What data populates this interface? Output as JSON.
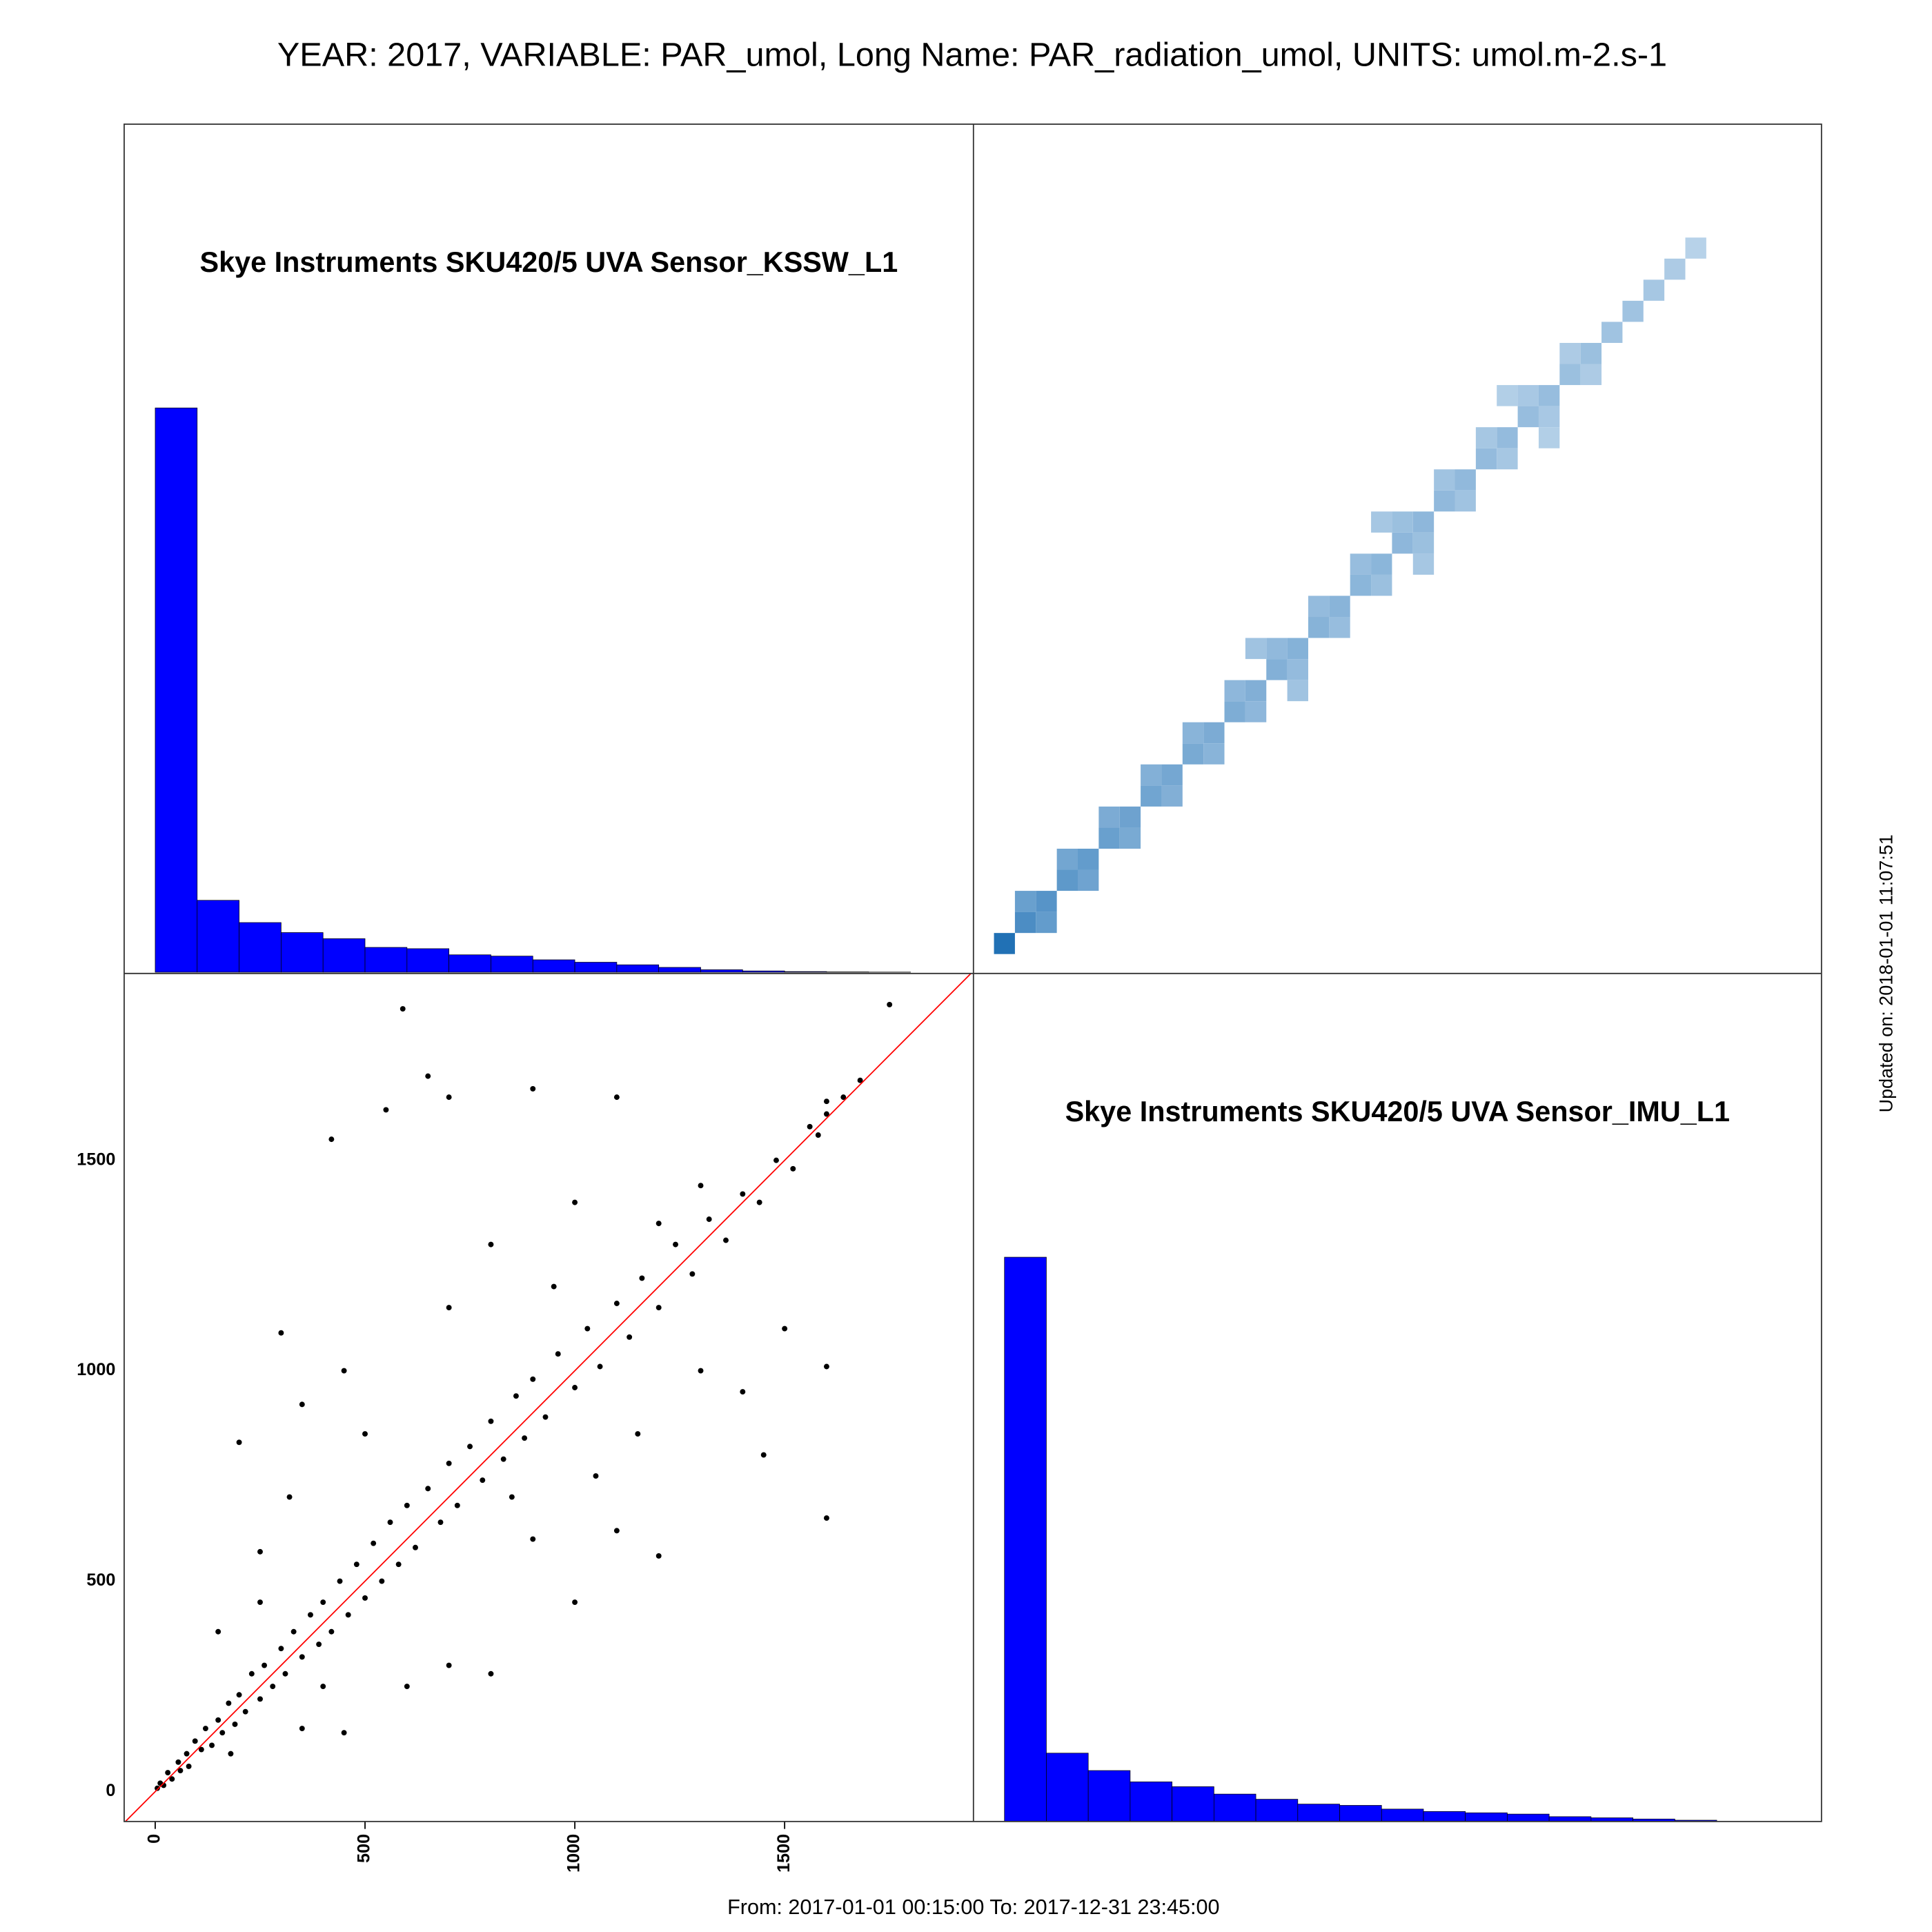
{
  "title": "YEAR: 2017, VARIABLE: PAR_umol, Long Name: PAR_radiation_umol, UNITS: umol.m-2.s-1",
  "footer": "From: 2017-01-01 00:15:00 To: 2017-12-31 23:45:00",
  "side_note": "Updated on: 2018-01-01 11:07:51",
  "chart_data": [
    {
      "type": "histogram",
      "title": "Skye Instruments SKU420/5 UVA Sensor_KSSW_L1",
      "color": "#0000ff",
      "bins": [
        0,
        100,
        200,
        300,
        400,
        500,
        600,
        700,
        800,
        900,
        1000,
        1100,
        1200,
        1300,
        1400,
        1500,
        1600,
        1700,
        1800
      ],
      "counts": [
        17500,
        2230,
        1540,
        1230,
        1040,
        770,
        730,
        540,
        500,
        385,
        310,
        230,
        150,
        77,
        40,
        20,
        10,
        4
      ],
      "xlim": [
        -74,
        1950
      ],
      "ylim": [
        0,
        26300
      ]
    },
    {
      "type": "density",
      "xlim": [
        -74,
        1950
      ],
      "ylim": [
        -71,
        1944
      ],
      "binwidth": 50,
      "colors": [
        "#f7fbff",
        "#2171b5"
      ],
      "x": [
        0,
        50,
        100,
        150,
        200,
        250,
        300,
        350,
        400,
        450,
        500,
        550,
        600,
        650,
        700,
        750,
        800,
        850,
        900,
        950,
        1000,
        1050,
        1100,
        1150,
        1200,
        1250,
        1300,
        1350,
        1400,
        1450,
        1500,
        1550,
        1600,
        1650,
        100,
        50,
        200,
        150,
        300,
        250,
        400,
        350,
        500,
        450,
        600,
        550,
        700,
        650,
        800,
        750,
        900,
        850,
        1000,
        950,
        1100,
        1050,
        1200,
        1150,
        1300,
        1250,
        1400,
        1350,
        600,
        700,
        900,
        1000,
        1200,
        1300
      ],
      "y": [
        0,
        50,
        100,
        150,
        200,
        250,
        300,
        350,
        400,
        450,
        500,
        550,
        600,
        650,
        700,
        750,
        800,
        850,
        900,
        950,
        1000,
        1050,
        1100,
        1150,
        1200,
        1250,
        1300,
        1350,
        1400,
        1450,
        1500,
        1550,
        1600,
        1650,
        50,
        100,
        150,
        200,
        250,
        300,
        350,
        400,
        450,
        500,
        550,
        600,
        650,
        700,
        750,
        800,
        850,
        900,
        950,
        1000,
        1050,
        1100,
        1150,
        1200,
        1250,
        1300,
        1350,
        1400,
        700,
        600,
        1000,
        900,
        1300,
        1200
      ],
      "counts": [
        3000,
        600,
        400,
        300,
        250,
        200,
        170,
        150,
        130,
        110,
        100,
        90,
        80,
        75,
        70,
        65,
        60,
        55,
        55,
        50,
        50,
        45,
        45,
        40,
        40,
        35,
        35,
        30,
        30,
        25,
        25,
        20,
        15,
        10,
        250,
        200,
        160,
        140,
        110,
        100,
        80,
        75,
        60,
        60,
        50,
        50,
        40,
        45,
        35,
        40,
        30,
        35,
        30,
        30,
        25,
        25,
        20,
        20,
        18,
        18,
        15,
        15,
        25,
        25,
        20,
        20,
        12,
        12
      ]
    },
    {
      "type": "scatter",
      "color": "#000000",
      "diagonal": true,
      "diagonal_color": "#ff0000",
      "xlim": [
        -74,
        1950
      ],
      "ylim": [
        -71,
        1944
      ],
      "xticks": [
        0,
        500,
        1000,
        1500
      ],
      "yticks": [
        0,
        500,
        1000,
        1500
      ],
      "x": [
        5,
        12,
        20,
        30,
        40,
        55,
        60,
        75,
        80,
        95,
        110,
        120,
        135,
        150,
        160,
        175,
        190,
        200,
        215,
        230,
        250,
        260,
        280,
        300,
        310,
        330,
        350,
        370,
        390,
        400,
        420,
        440,
        460,
        480,
        500,
        520,
        540,
        560,
        580,
        600,
        620,
        650,
        680,
        700,
        720,
        750,
        780,
        800,
        830,
        860,
        880,
        900,
        930,
        960,
        1000,
        1030,
        1060,
        1100,
        1130,
        1160,
        1200,
        1240,
        1280,
        1320,
        1360,
        1400,
        1440,
        1480,
        1520,
        1560,
        1600,
        1640,
        1680,
        590,
        1750,
        1600,
        1600,
        250,
        450,
        700,
        900,
        1100,
        300,
        420,
        1300,
        1450,
        1000,
        1200,
        800,
        650,
        550,
        350,
        200,
        1500,
        1400,
        1100,
        600,
        800,
        1000,
        450,
        1300,
        700,
        1200,
        250,
        150,
        500,
        900,
        1150,
        700,
        320,
        1600,
        1580,
        850,
        950,
        350,
        180,
        400,
        1050
      ],
      "y": [
        8,
        20,
        15,
        45,
        30,
        70,
        50,
        90,
        60,
        120,
        100,
        150,
        110,
        170,
        140,
        210,
        160,
        230,
        190,
        280,
        220,
        300,
        250,
        340,
        280,
        380,
        320,
        420,
        350,
        450,
        380,
        500,
        420,
        540,
        460,
        590,
        500,
        640,
        540,
        680,
        580,
        720,
        640,
        780,
        680,
        820,
        740,
        880,
        790,
        940,
        840,
        980,
        890,
        1040,
        960,
        1100,
        1010,
        1160,
        1080,
        1220,
        1150,
        1300,
        1230,
        1360,
        1310,
        1420,
        1400,
        1500,
        1480,
        1580,
        1610,
        1650,
        1690,
        1860,
        1870,
        1010,
        650,
        570,
        140,
        1650,
        1670,
        1650,
        1090,
        1550,
        1440,
        800,
        450,
        560,
        280,
        1700,
        1620,
        920,
        830,
        1100,
        950,
        620,
        250,
        1300,
        1400,
        1000,
        1000,
        300,
        1350,
        450,
        380,
        850,
        600,
        850,
        1150,
        700,
        1640,
        1560,
        700,
        1200,
        150,
        90,
        250,
        750
      ]
    },
    {
      "type": "histogram",
      "title": "Skye Instruments SKU420/5 UVA Sensor_IMU_L1",
      "color": "#0000ff",
      "bins": [
        0,
        100,
        200,
        300,
        400,
        500,
        600,
        700,
        800,
        900,
        1000,
        1100,
        1200,
        1300,
        1400,
        1500,
        1600,
        1700,
        1800,
        1900
      ],
      "counts": [
        17500,
        2120,
        1580,
        1230,
        1080,
        850,
        690,
        540,
        500,
        385,
        310,
        270,
        230,
        150,
        115,
        77,
        40,
        10,
        5
      ],
      "xlim": [
        -74,
        1950
      ],
      "ylim": [
        0,
        26300
      ]
    }
  ]
}
